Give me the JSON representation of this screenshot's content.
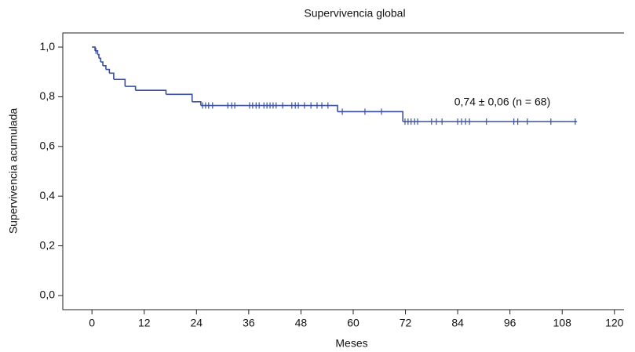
{
  "chart_data": {
    "type": "step",
    "title": "Supervivencia global",
    "xlabel": "Meses",
    "ylabel": "Supervivencia acumulada",
    "annotation": "0,74 ± 0,06 (n = 68)",
    "color": "#3b4fa0",
    "x": [
      0,
      0.7,
      1.3,
      1.6,
      2,
      2.5,
      3.2,
      4,
      5,
      7.6,
      10,
      17,
      23,
      25,
      56.4,
      71.4,
      111.4
    ],
    "values": [
      1,
      0.985,
      0.97,
      0.955,
      0.94,
      0.925,
      0.91,
      0.895,
      0.87,
      0.842,
      0.826,
      0.81,
      0.78,
      0.765,
      0.74,
      0.7,
      0.7
    ],
    "censored": [
      0.9,
      25.4,
      26.1,
      26.8,
      27.7,
      31.2,
      32.1,
      32.8,
      36.2,
      36.9,
      37.7,
      38.4,
      39.5,
      40.2,
      40.9,
      41.6,
      42.3,
      43.8,
      45.9,
      46.7,
      47.4,
      48.8,
      50.3,
      51.7,
      52.8,
      54.2,
      57.5,
      62.7,
      66.5,
      71.9,
      72.6,
      73.3,
      74.1,
      74.8,
      78.0,
      79.1,
      80.4,
      84.0,
      84.9,
      85.8,
      86.7,
      90.6,
      96.9,
      97.8,
      100,
      105.4,
      111.0
    ],
    "xlim": [
      -6.7,
      122.2
    ],
    "ylim": [
      -0.057,
      1.057
    ],
    "xticks": [
      0,
      12,
      24,
      36,
      48,
      60,
      72,
      84,
      96,
      108,
      120
    ],
    "yticks": [
      {
        "value": 0,
        "label": "0,0"
      },
      {
        "value": 0.2,
        "label": "0,2"
      },
      {
        "value": 0.4,
        "label": "0,4"
      },
      {
        "value": 0.6,
        "label": "0,6"
      },
      {
        "value": 0.8,
        "label": "0,8"
      },
      {
        "value": 1,
        "label": "1,0"
      }
    ]
  }
}
